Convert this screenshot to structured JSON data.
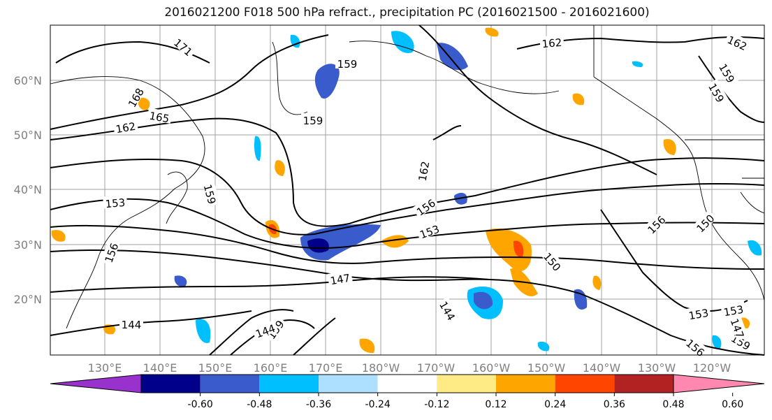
{
  "title": "2016021200 F018 500 hPa refract., precipitation PC (2016021500 - 2016021600)",
  "map": {
    "lat_labels": [
      "60°N",
      "50°N",
      "40°N",
      "30°N",
      "20°N"
    ],
    "lon_labels": [
      "130°E",
      "140°E",
      "150°E",
      "160°E",
      "170°E",
      "180°W",
      "170°W",
      "160°W",
      "150°W",
      "140°W",
      "130°W",
      "120°W"
    ],
    "contour_labels": [
      "171",
      "168",
      "165",
      "162",
      "162",
      "162",
      "162",
      "159",
      "159",
      "159",
      "159",
      "159",
      "159",
      "159",
      "156",
      "156",
      "156",
      "156",
      "153",
      "153",
      "153",
      "153",
      "150",
      "150",
      "147",
      "147",
      "144",
      "144",
      "144"
    ],
    "label_color": "#808080"
  },
  "colorbar": {
    "colors": [
      "#9932CC",
      "#00008B",
      "#3A5BCB",
      "#00BFFF",
      "#ADDFFF",
      "#FFFFFF",
      "#FFEB86",
      "#FFA500",
      "#FF4500",
      "#B22222",
      "#FF88B0"
    ],
    "tick_labels": [
      "-0.60",
      "-0.48",
      "-0.36",
      "-0.24",
      "-0.12",
      "0.12",
      "0.24",
      "0.36",
      "0.48",
      "0.60"
    ]
  }
}
